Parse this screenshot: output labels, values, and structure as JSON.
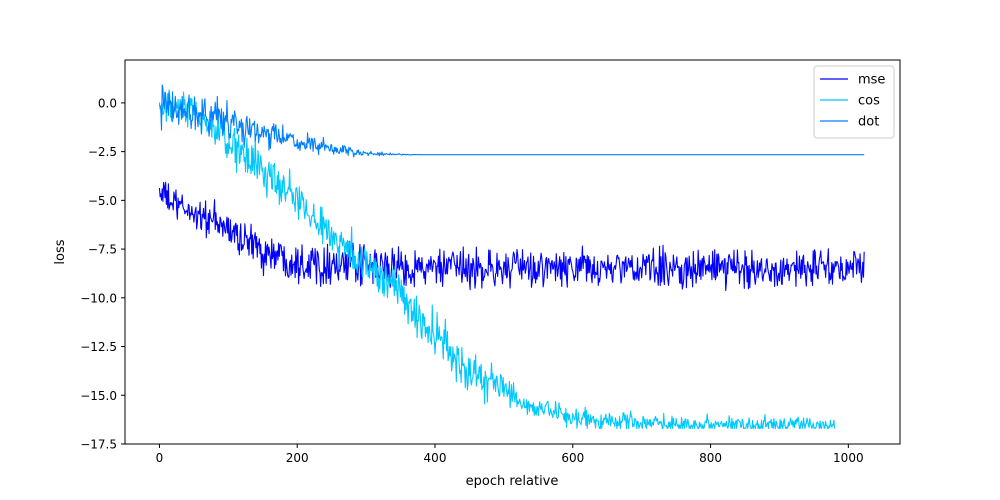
{
  "chart_data": {
    "type": "line",
    "title": "",
    "xlabel": "epoch relative",
    "ylabel": "loss",
    "xlim": [
      -50,
      1075
    ],
    "ylim": [
      -17.5,
      2.2
    ],
    "xticks": [
      0,
      200,
      400,
      600,
      800,
      1000
    ],
    "xtick_labels": [
      "0",
      "200",
      "400",
      "600",
      "800",
      "1000"
    ],
    "yticks": [
      0.0,
      -2.5,
      -5.0,
      -7.5,
      -10.0,
      -12.5,
      -15.0,
      -17.5
    ],
    "ytick_labels": [
      "0.0",
      "−2.5",
      "−5.0",
      "−7.5",
      "−10.0",
      "−12.5",
      "−15.0",
      "−17.5"
    ],
    "grid": false,
    "legend_position": "top-right",
    "x_range": [
      0,
      1023
    ],
    "series": [
      {
        "name": "mse",
        "color": "#0000ff",
        "description_points": [
          [
            0,
            -4.5
          ],
          [
            20,
            -5.2
          ],
          [
            60,
            -5.8
          ],
          [
            100,
            -6.5
          ],
          [
            150,
            -7.6
          ],
          [
            200,
            -8.1
          ],
          [
            300,
            -8.4
          ],
          [
            400,
            -8.5
          ],
          [
            500,
            -8.5
          ],
          [
            600,
            -8.5
          ],
          [
            700,
            -8.5
          ],
          [
            800,
            -8.5
          ],
          [
            900,
            -8.5
          ],
          [
            1023,
            -8.5
          ]
        ],
        "noise": [
          [
            0,
            0.7
          ],
          [
            100,
            0.9
          ],
          [
            200,
            1.0
          ],
          [
            400,
            0.9
          ],
          [
            1023,
            0.9
          ]
        ]
      },
      {
        "name": "cos",
        "color": "#00c8ff",
        "description_points": [
          [
            0,
            -0.3
          ],
          [
            50,
            -0.5
          ],
          [
            100,
            -2.0
          ],
          [
            150,
            -3.5
          ],
          [
            200,
            -5.0
          ],
          [
            250,
            -6.8
          ],
          [
            300,
            -8.3
          ],
          [
            350,
            -9.8
          ],
          [
            400,
            -12.0
          ],
          [
            450,
            -13.8
          ],
          [
            500,
            -14.7
          ],
          [
            530,
            -15.5
          ],
          [
            600,
            -16.2
          ],
          [
            700,
            -16.4
          ],
          [
            800,
            -16.5
          ],
          [
            900,
            -16.5
          ],
          [
            980,
            -16.5
          ]
        ],
        "noise": [
          [
            0,
            0.8
          ],
          [
            150,
            1.0
          ],
          [
            300,
            1.0
          ],
          [
            400,
            1.2
          ],
          [
            480,
            1.0
          ],
          [
            530,
            0.5
          ],
          [
            980,
            0.4
          ]
        ]
      },
      {
        "name": "dot",
        "color": "#0080ff",
        "description_points": [
          [
            0,
            -0.2
          ],
          [
            50,
            -0.4
          ],
          [
            100,
            -0.9
          ],
          [
            150,
            -1.6
          ],
          [
            200,
            -2.0
          ],
          [
            250,
            -2.4
          ],
          [
            300,
            -2.6
          ],
          [
            350,
            -2.65
          ],
          [
            400,
            -2.66
          ],
          [
            600,
            -2.66
          ],
          [
            1023,
            -2.66
          ]
        ],
        "noise": [
          [
            0,
            0.9
          ],
          [
            100,
            0.9
          ],
          [
            200,
            0.5
          ],
          [
            250,
            0.3
          ],
          [
            300,
            0.12
          ],
          [
            340,
            0.05
          ],
          [
            380,
            0.0
          ],
          [
            1023,
            0.0
          ]
        ]
      }
    ]
  }
}
